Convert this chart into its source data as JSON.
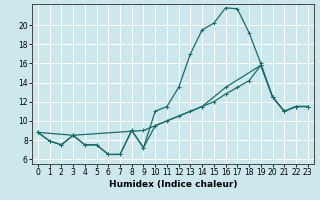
{
  "xlabel": "Humidex (Indice chaleur)",
  "bg_color": "#cde8ec",
  "grid_color": "#ffffff",
  "line_color": "#1a6b6b",
  "xlim": [
    -0.5,
    23.5
  ],
  "ylim": [
    5.5,
    22.2
  ],
  "xticks": [
    0,
    1,
    2,
    3,
    4,
    5,
    6,
    7,
    8,
    9,
    10,
    11,
    12,
    13,
    14,
    15,
    16,
    17,
    18,
    19,
    20,
    21,
    22,
    23
  ],
  "yticks": [
    6,
    8,
    10,
    12,
    14,
    16,
    18,
    20
  ],
  "line1_x": [
    0,
    1,
    2,
    3,
    4,
    5,
    6,
    7,
    8,
    9,
    10,
    11,
    12,
    13,
    14,
    15,
    16,
    17,
    18,
    19,
    20,
    21,
    22,
    23
  ],
  "line1_y": [
    8.8,
    7.9,
    7.5,
    8.5,
    7.5,
    7.5,
    6.5,
    6.5,
    9.0,
    7.2,
    11.0,
    11.5,
    13.5,
    17.0,
    19.5,
    20.2,
    21.8,
    21.7,
    19.2,
    16.0,
    12.5,
    11.0,
    11.5,
    11.5
  ],
  "line2_x": [
    0,
    1,
    2,
    3,
    4,
    5,
    6,
    7,
    8,
    9,
    10,
    11,
    12,
    13,
    14,
    15,
    16,
    17,
    18,
    19,
    20,
    21,
    22,
    23
  ],
  "line2_y": [
    8.8,
    7.9,
    7.5,
    8.5,
    7.5,
    7.5,
    6.5,
    6.5,
    9.0,
    7.2,
    9.5,
    10.0,
    10.5,
    11.0,
    11.5,
    12.0,
    12.8,
    13.5,
    14.2,
    15.8,
    12.5,
    11.0,
    11.5,
    11.5
  ],
  "line3_x": [
    0,
    3,
    9,
    14,
    16,
    19,
    20,
    21,
    22,
    23
  ],
  "line3_y": [
    8.8,
    8.5,
    9.0,
    11.5,
    13.5,
    15.8,
    12.5,
    11.0,
    11.5,
    11.5
  ],
  "tick_fontsize": 5.5,
  "xlabel_fontsize": 6.5
}
